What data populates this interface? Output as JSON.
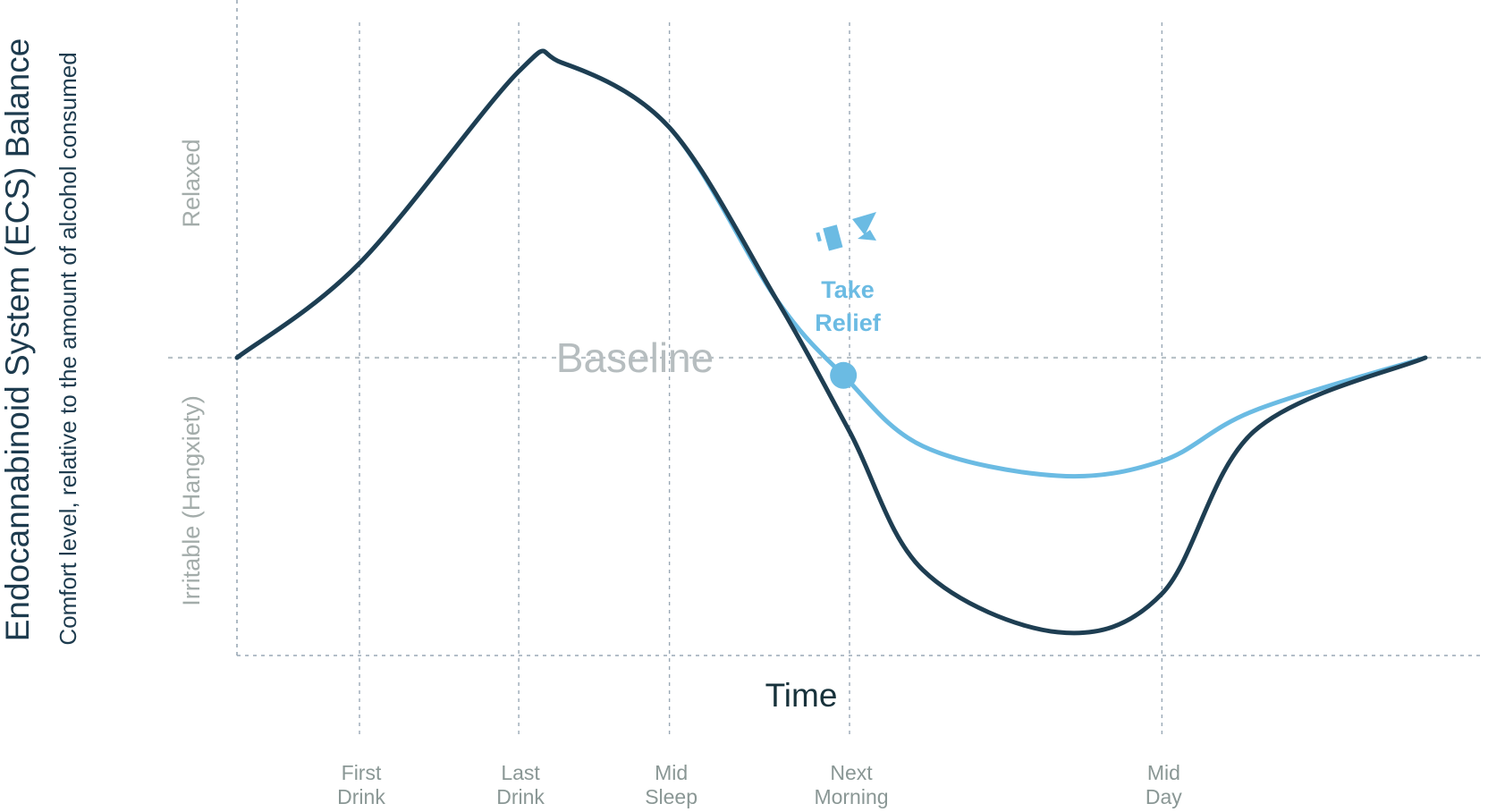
{
  "chart_data": {
    "type": "line",
    "title": "",
    "ylabel": "Endocannabinoid System (ECS)  Balance",
    "ysublabel": "Comfort level, relative to the amount of alcohol consumed",
    "xlabel": "Time",
    "y_bands": {
      "upper": "Relaxed",
      "lower": "Irritable (Hangxiety)"
    },
    "baseline_label": "Baseline",
    "ylim": [
      -1,
      1
    ],
    "x_ticks": [
      {
        "x": 1,
        "line1": "First",
        "line2": "Drink"
      },
      {
        "x": 2.3,
        "line1": "Last",
        "line2": "Drink"
      },
      {
        "x": 3.53,
        "line1": "Mid",
        "line2": "Sleep"
      },
      {
        "x": 5,
        "line1": "Next",
        "line2": "Morning"
      },
      {
        "x": 7.55,
        "line1": "Mid",
        "line2": "Day"
      }
    ],
    "series": [
      {
        "color": "#1e3e52",
        "points": [
          [
            0,
            0
          ],
          [
            1,
            0.32
          ],
          [
            2.3,
            0.97
          ],
          [
            2.65,
            1.0
          ],
          [
            3.53,
            0.78
          ],
          [
            4.4,
            0.2
          ],
          [
            5,
            -0.25
          ],
          [
            5.6,
            -0.72
          ],
          [
            6.7,
            -0.93
          ],
          [
            7.55,
            -0.8
          ],
          [
            8.3,
            -0.25
          ],
          [
            9.7,
            0
          ]
        ]
      },
      {
        "color": "#6bbbe3",
        "points": [
          [
            0,
            0
          ],
          [
            1,
            0.32
          ],
          [
            2.3,
            0.97
          ],
          [
            2.65,
            1.0
          ],
          [
            3.53,
            0.78
          ],
          [
            4.4,
            0.2
          ],
          [
            4.95,
            -0.06
          ],
          [
            5.6,
            -0.3
          ],
          [
            6.7,
            -0.4
          ],
          [
            7.55,
            -0.35
          ],
          [
            8.3,
            -0.18
          ],
          [
            9.7,
            0
          ]
        ]
      }
    ],
    "marker": {
      "x": 4.95,
      "y": -0.06,
      "label_line1": "Take",
      "label_line2": "Relief",
      "color": "#6bbbe3"
    }
  }
}
